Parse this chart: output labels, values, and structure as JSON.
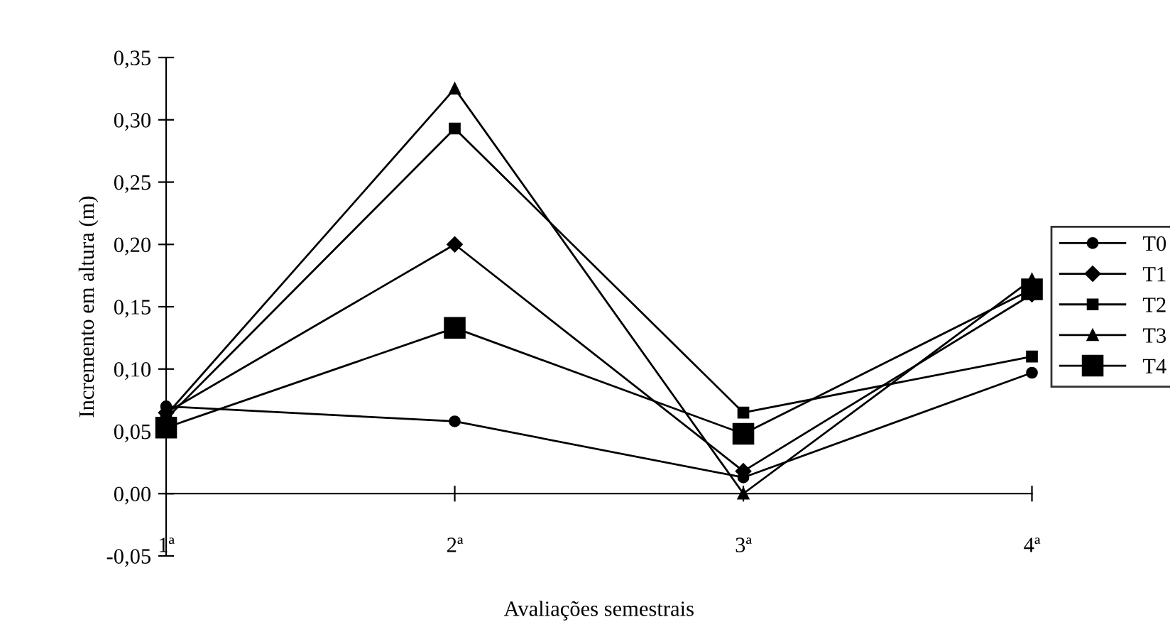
{
  "chart_data": {
    "type": "line",
    "xlabel": "Avaliações semestrais",
    "ylabel": "Incremento em altura (m)",
    "categories": [
      "1ª",
      "2ª",
      "3ª",
      "4ª"
    ],
    "series": [
      {
        "name": "T0",
        "color": "#000000",
        "marker": "circle",
        "values": [
          0.07,
          0.058,
          0.013,
          0.097
        ]
      },
      {
        "name": "T1",
        "color": "#000000",
        "marker": "diamond",
        "values": [
          0.065,
          0.2,
          0.018,
          0.16
        ]
      },
      {
        "name": "T2",
        "color": "#000000",
        "marker": "square",
        "values": [
          0.06,
          0.293,
          0.065,
          0.11
        ]
      },
      {
        "name": "T3",
        "color": "#000000",
        "marker": "triangle",
        "values": [
          0.063,
          0.325,
          0.0,
          0.172
        ]
      },
      {
        "name": "T4",
        "color": "#000000",
        "marker": "square",
        "values": [
          0.053,
          0.133,
          0.048,
          0.164
        ]
      }
    ],
    "ylim": [
      -0.05,
      0.35
    ],
    "yticks": [
      {
        "value": -0.05,
        "label": "-0,05"
      },
      {
        "value": 0,
        "label": "0,00"
      },
      {
        "value": 0.05,
        "label": "0,05"
      },
      {
        "value": 0.1,
        "label": "0,10"
      },
      {
        "value": 0.15,
        "label": "0,15"
      },
      {
        "value": 0.2,
        "label": "0,20"
      },
      {
        "value": 0.25,
        "label": "0,25"
      },
      {
        "value": 0.3,
        "label": "0,30"
      },
      {
        "value": 0.35,
        "label": "0,35"
      }
    ],
    "grid": false,
    "legend": "right",
    "line_style": "solid"
  }
}
